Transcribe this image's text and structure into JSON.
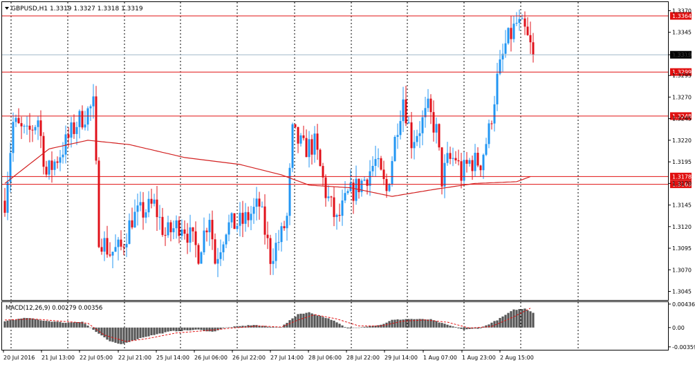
{
  "chart_data": {
    "type": "candlestick",
    "symbol_header": "GBPUSD,H1  1.3319 1.3327 1.3318 1.3319",
    "price_axis": {
      "range": [
        1.3035,
        1.338
      ],
      "ticks": [
        "1.3370",
        "1.3345",
        "1.3319",
        "1.3295",
        "1.3270",
        "1.3245",
        "1.3220",
        "1.3195",
        "1.3170",
        "1.3145",
        "1.3120",
        "1.3095",
        "1.3070",
        "1.3045"
      ]
    },
    "current_price": "1.3319",
    "horizontal_levels": [
      "1.3364",
      "1.3299",
      "1.3248",
      "1.3178",
      "1.3169"
    ],
    "time_labels": [
      "20 Jul 2016",
      "21 Jul 13:00",
      "22 Jul 05:00",
      "22 Jul 21:00",
      "25 Jul 14:00",
      "26 Jul 06:00",
      "26 Jul 22:00",
      "27 Jul 14:00",
      "28 Jul 06:00",
      "28 Jul 22:00",
      "29 Jul 14:00",
      "1 Aug 07:00",
      "1 Aug 23:00",
      "2 Aug 15:00"
    ],
    "moving_average_anchors": [
      [
        0,
        1.317
      ],
      [
        16,
        1.321
      ],
      [
        30,
        1.322
      ],
      [
        45,
        1.3215
      ],
      [
        65,
        1.32
      ],
      [
        85,
        1.3192
      ],
      [
        100,
        1.318
      ],
      [
        110,
        1.3168
      ],
      [
        125,
        1.3165
      ],
      [
        140,
        1.3155
      ],
      [
        155,
        1.3163
      ],
      [
        170,
        1.317
      ],
      [
        185,
        1.3172
      ],
      [
        190,
        1.3178
      ]
    ],
    "candles_anchor_closes": [
      [
        0,
        1.315
      ],
      [
        3,
        1.324
      ],
      [
        8,
        1.3225
      ],
      [
        12,
        1.3245
      ],
      [
        15,
        1.318
      ],
      [
        20,
        1.3205
      ],
      [
        26,
        1.324
      ],
      [
        32,
        1.326
      ],
      [
        34,
        1.311
      ],
      [
        38,
        1.309
      ],
      [
        42,
        1.3095
      ],
      [
        46,
        1.313
      ],
      [
        54,
        1.3145
      ],
      [
        58,
        1.311
      ],
      [
        64,
        1.3125
      ],
      [
        70,
        1.309
      ],
      [
        74,
        1.3135
      ],
      [
        76,
        1.308
      ],
      [
        80,
        1.312
      ],
      [
        86,
        1.3125
      ],
      [
        92,
        1.3145
      ],
      [
        96,
        1.3085
      ],
      [
        100,
        1.311
      ],
      [
        102,
        1.313
      ],
      [
        104,
        1.3228
      ],
      [
        108,
        1.321
      ],
      [
        112,
        1.3215
      ],
      [
        116,
        1.316
      ],
      [
        120,
        1.3125
      ],
      [
        124,
        1.3155
      ],
      [
        130,
        1.3175
      ],
      [
        134,
        1.3195
      ],
      [
        138,
        1.316
      ],
      [
        142,
        1.324
      ],
      [
        144,
        1.327
      ],
      [
        147,
        1.322
      ],
      [
        150,
        1.3235
      ],
      [
        153,
        1.3255
      ],
      [
        156,
        1.323
      ],
      [
        158,
        1.3175
      ],
      [
        160,
        1.3195
      ],
      [
        163,
        1.32
      ],
      [
        165,
        1.318
      ],
      [
        168,
        1.3195
      ],
      [
        172,
        1.3195
      ],
      [
        175,
        1.323
      ],
      [
        178,
        1.329
      ],
      [
        181,
        1.333
      ],
      [
        185,
        1.3355
      ],
      [
        188,
        1.3345
      ],
      [
        191,
        1.3319
      ]
    ],
    "macd": {
      "label": "MACD(12,26,9)  0.00279 0.00356",
      "ticks": [
        "0.00436",
        "0.00",
        "-0.00359"
      ],
      "range": [
        -0.004,
        0.0046
      ],
      "hist_anchors": [
        [
          0,
          0.0012
        ],
        [
          8,
          0.0018
        ],
        [
          14,
          0.0013
        ],
        [
          22,
          0.0009
        ],
        [
          28,
          0.0011
        ],
        [
          33,
          -0.0008
        ],
        [
          38,
          -0.0026
        ],
        [
          42,
          -0.0031
        ],
        [
          50,
          -0.0018
        ],
        [
          60,
          -0.0007
        ],
        [
          70,
          -0.0004
        ],
        [
          75,
          -0.0008
        ],
        [
          80,
          0.0
        ],
        [
          90,
          0.0005
        ],
        [
          96,
          0.0001
        ],
        [
          100,
          0.0001
        ],
        [
          106,
          0.0025
        ],
        [
          110,
          0.0028
        ],
        [
          118,
          0.0015
        ],
        [
          124,
          -0.0002
        ],
        [
          130,
          0.0002
        ],
        [
          136,
          0.0005
        ],
        [
          140,
          0.0014
        ],
        [
          146,
          0.0016
        ],
        [
          154,
          0.0015
        ],
        [
          158,
          0.0008
        ],
        [
          166,
          -0.0004
        ],
        [
          172,
          -0.0001
        ],
        [
          178,
          0.0014
        ],
        [
          184,
          0.0033
        ],
        [
          188,
          0.0035
        ],
        [
          191,
          0.0028
        ]
      ],
      "signal_anchors": [
        [
          0,
          0.0014
        ],
        [
          10,
          0.0016
        ],
        [
          20,
          0.0012
        ],
        [
          30,
          0.0008
        ],
        [
          36,
          -0.0014
        ],
        [
          44,
          -0.0026
        ],
        [
          52,
          -0.002
        ],
        [
          62,
          -0.001
        ],
        [
          72,
          -0.0006
        ],
        [
          82,
          -0.0001
        ],
        [
          92,
          0.0003
        ],
        [
          100,
          0.0001
        ],
        [
          106,
          0.0014
        ],
        [
          112,
          0.0024
        ],
        [
          120,
          0.0016
        ],
        [
          128,
          0.0003
        ],
        [
          136,
          0.0003
        ],
        [
          144,
          0.0012
        ],
        [
          152,
          0.0014
        ],
        [
          160,
          0.001
        ],
        [
          168,
          -0.0001
        ],
        [
          176,
          0.0002
        ],
        [
          184,
          0.002
        ],
        [
          190,
          0.0036
        ]
      ]
    },
    "colors": {
      "up_candle": "#2196f3",
      "down_candle": "#e0101a",
      "moving_average": "#d22020",
      "level_line": "#e01010",
      "level_tag_bg": "#e01010",
      "current_price_line": "#a0b8c8",
      "current_price_tag_bg": "#000000",
      "macd_histogram": "#555555",
      "macd_signal": "#e01010",
      "grid": "#000000"
    }
  }
}
